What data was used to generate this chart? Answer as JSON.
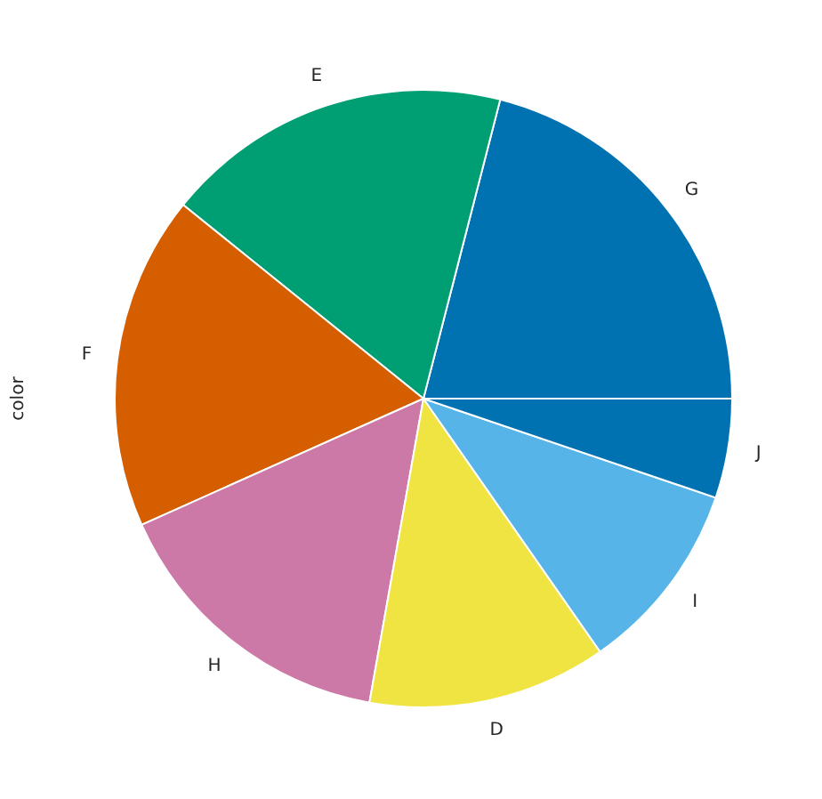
{
  "chart_data": {
    "type": "pie",
    "ylabel": "color",
    "categories": [
      "G",
      "E",
      "F",
      "H",
      "D",
      "I",
      "J"
    ],
    "values": [
      21.0,
      18.2,
      17.5,
      15.5,
      12.5,
      10.1,
      5.2
    ],
    "colors": [
      "#0072b2",
      "#009e73",
      "#d55e00",
      "#cc79a7",
      "#f0e442",
      "#56b4e9",
      "#0072b2"
    ]
  }
}
